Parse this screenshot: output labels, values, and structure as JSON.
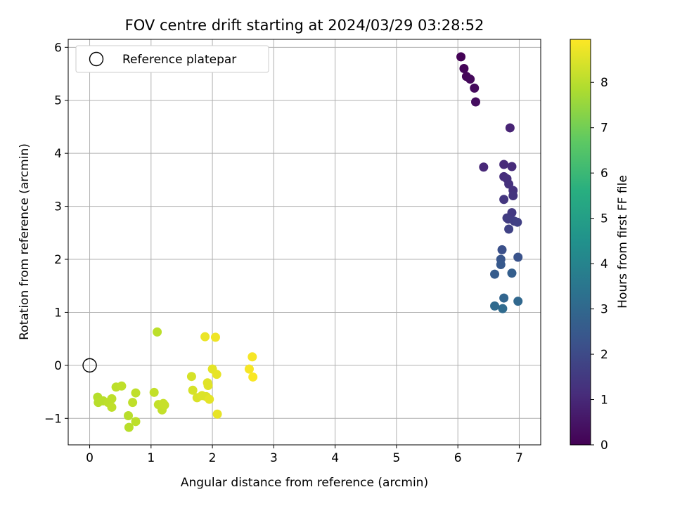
{
  "chart_data": {
    "type": "scatter",
    "title": "FOV centre drift starting at 2024/03/29 03:28:52",
    "xlabel": "Angular distance from reference (arcmin)",
    "ylabel": "Rotation from reference (arcmin)",
    "xlim": [
      -0.35,
      7.35
    ],
    "ylim": [
      -1.5,
      6.15
    ],
    "x_ticks": [
      0,
      1,
      2,
      3,
      4,
      5,
      6,
      7
    ],
    "y_ticks": [
      -1,
      0,
      1,
      2,
      3,
      4,
      5,
      6
    ],
    "grid": true,
    "legend": {
      "position": "top-left",
      "entries": [
        "Reference platepar"
      ]
    },
    "reference_point": {
      "x": 0,
      "y": 0
    },
    "colorbar": {
      "label": "Hours from first FF file",
      "colormap": "viridis",
      "range": [
        0,
        8.95
      ],
      "ticks": [
        0,
        1,
        2,
        3,
        4,
        5,
        6,
        7,
        8
      ]
    },
    "points": [
      {
        "x": 6.05,
        "y": 5.82,
        "c": 0.05
      },
      {
        "x": 6.1,
        "y": 5.6,
        "c": 0.1
      },
      {
        "x": 6.14,
        "y": 5.45,
        "c": 0.15
      },
      {
        "x": 6.2,
        "y": 5.4,
        "c": 0.2
      },
      {
        "x": 6.27,
        "y": 5.23,
        "c": 0.25
      },
      {
        "x": 6.29,
        "y": 4.97,
        "c": 0.3
      },
      {
        "x": 6.85,
        "y": 4.48,
        "c": 0.9
      },
      {
        "x": 6.42,
        "y": 3.74,
        "c": 1.0
      },
      {
        "x": 6.75,
        "y": 3.79,
        "c": 1.05
      },
      {
        "x": 6.88,
        "y": 3.75,
        "c": 1.1
      },
      {
        "x": 6.75,
        "y": 3.56,
        "c": 1.15
      },
      {
        "x": 6.8,
        "y": 3.52,
        "c": 1.2
      },
      {
        "x": 6.83,
        "y": 3.42,
        "c": 1.25
      },
      {
        "x": 6.9,
        "y": 3.3,
        "c": 1.3
      },
      {
        "x": 6.9,
        "y": 3.2,
        "c": 1.35
      },
      {
        "x": 6.75,
        "y": 3.13,
        "c": 1.4
      },
      {
        "x": 6.88,
        "y": 2.88,
        "c": 1.5
      },
      {
        "x": 6.8,
        "y": 2.78,
        "c": 1.55
      },
      {
        "x": 6.82,
        "y": 2.76,
        "c": 1.6
      },
      {
        "x": 6.92,
        "y": 2.72,
        "c": 1.65
      },
      {
        "x": 6.97,
        "y": 2.7,
        "c": 1.7
      },
      {
        "x": 6.83,
        "y": 2.57,
        "c": 1.75
      },
      {
        "x": 6.72,
        "y": 2.18,
        "c": 2.2
      },
      {
        "x": 6.98,
        "y": 2.04,
        "c": 2.3
      },
      {
        "x": 6.7,
        "y": 2.0,
        "c": 2.4
      },
      {
        "x": 6.7,
        "y": 1.9,
        "c": 2.5
      },
      {
        "x": 6.6,
        "y": 1.72,
        "c": 2.6
      },
      {
        "x": 6.88,
        "y": 1.74,
        "c": 2.7
      },
      {
        "x": 6.75,
        "y": 1.27,
        "c": 2.9
      },
      {
        "x": 6.98,
        "y": 1.21,
        "c": 3.0
      },
      {
        "x": 6.6,
        "y": 1.12,
        "c": 3.05
      },
      {
        "x": 6.73,
        "y": 1.07,
        "c": 3.1
      },
      {
        "x": 1.1,
        "y": 0.63,
        "c": 8.05
      },
      {
        "x": 0.13,
        "y": -0.6,
        "c": 7.95
      },
      {
        "x": 0.14,
        "y": -0.7,
        "c": 8.0
      },
      {
        "x": 0.22,
        "y": -0.67,
        "c": 8.0
      },
      {
        "x": 0.3,
        "y": -0.7,
        "c": 8.05
      },
      {
        "x": 0.36,
        "y": -0.63,
        "c": 8.05
      },
      {
        "x": 0.36,
        "y": -0.79,
        "c": 8.1
      },
      {
        "x": 0.43,
        "y": -0.41,
        "c": 8.05
      },
      {
        "x": 0.52,
        "y": -0.39,
        "c": 8.1
      },
      {
        "x": 0.63,
        "y": -0.95,
        "c": 8.0
      },
      {
        "x": 0.64,
        "y": -1.17,
        "c": 8.0
      },
      {
        "x": 0.7,
        "y": -0.7,
        "c": 8.1
      },
      {
        "x": 0.75,
        "y": -0.52,
        "c": 8.1
      },
      {
        "x": 0.75,
        "y": -1.06,
        "c": 8.05
      },
      {
        "x": 1.05,
        "y": -0.51,
        "c": 8.15
      },
      {
        "x": 1.12,
        "y": -0.74,
        "c": 8.15
      },
      {
        "x": 1.18,
        "y": -0.84,
        "c": 8.15
      },
      {
        "x": 1.2,
        "y": -0.72,
        "c": 8.2
      },
      {
        "x": 1.22,
        "y": -0.75,
        "c": 8.2
      },
      {
        "x": 1.88,
        "y": 0.54,
        "c": 8.7
      },
      {
        "x": 2.05,
        "y": 0.53,
        "c": 8.75
      },
      {
        "x": 1.66,
        "y": -0.21,
        "c": 8.4
      },
      {
        "x": 1.68,
        "y": -0.47,
        "c": 8.4
      },
      {
        "x": 1.75,
        "y": -0.61,
        "c": 8.45
      },
      {
        "x": 1.83,
        "y": -0.57,
        "c": 8.5
      },
      {
        "x": 1.9,
        "y": -0.59,
        "c": 8.5
      },
      {
        "x": 1.92,
        "y": -0.33,
        "c": 8.55
      },
      {
        "x": 1.93,
        "y": -0.38,
        "c": 8.55
      },
      {
        "x": 1.95,
        "y": -0.64,
        "c": 8.6
      },
      {
        "x": 2.0,
        "y": -0.07,
        "c": 8.6
      },
      {
        "x": 2.07,
        "y": -0.17,
        "c": 8.65
      },
      {
        "x": 2.08,
        "y": -0.92,
        "c": 8.65
      },
      {
        "x": 2.6,
        "y": -0.07,
        "c": 8.85
      },
      {
        "x": 2.65,
        "y": 0.16,
        "c": 8.85
      },
      {
        "x": 2.66,
        "y": -0.22,
        "c": 8.9
      }
    ]
  }
}
